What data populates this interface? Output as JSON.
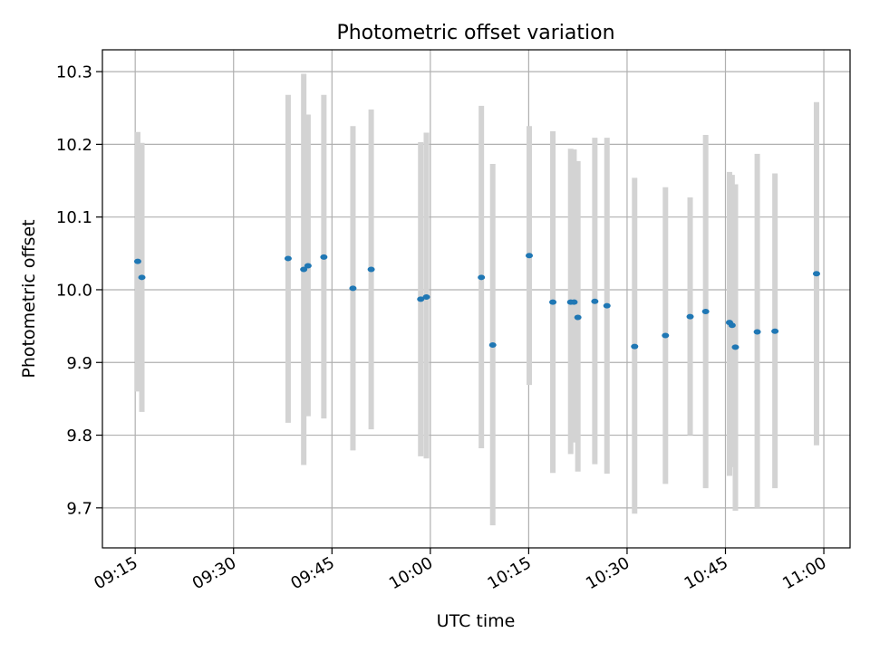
{
  "chart_data": {
    "type": "scatter",
    "title": "Photometric offset variation",
    "xlabel": "UTC time",
    "ylabel": "Photometric offset",
    "x_axis": {
      "kind": "time",
      "range": [
        "09:10",
        "11:04"
      ],
      "ticks": [
        "09:15",
        "09:30",
        "09:45",
        "10:00",
        "10:15",
        "10:30",
        "10:45",
        "11:00"
      ]
    },
    "y_axis": {
      "range": [
        9.645,
        10.33
      ],
      "ticks": [
        9.7,
        9.8,
        9.9,
        10.0,
        10.1,
        10.2,
        10.3
      ],
      "tick_labels": [
        "9.7",
        "9.8",
        "9.9",
        "10.0",
        "10.1",
        "10.2",
        "10.3"
      ]
    },
    "grid": true,
    "legend": "none",
    "colors": {
      "point": "#1f77b4",
      "errorbar": "#d3d3d3",
      "grid": "#b0b0b0"
    },
    "points": [
      {
        "x": "09:15:23",
        "y": 10.039,
        "lo": 9.86,
        "hi": 10.217
      },
      {
        "x": "09:16:01",
        "y": 10.017,
        "lo": 9.832,
        "hi": 10.202
      },
      {
        "x": "09:38:19",
        "y": 10.043,
        "lo": 9.817,
        "hi": 10.268
      },
      {
        "x": "09:40:42",
        "y": 10.028,
        "lo": 9.759,
        "hi": 10.297
      },
      {
        "x": "09:41:21",
        "y": 10.033,
        "lo": 9.826,
        "hi": 10.241
      },
      {
        "x": "09:43:46",
        "y": 10.045,
        "lo": 9.823,
        "hi": 10.268
      },
      {
        "x": "09:48:12",
        "y": 10.002,
        "lo": 9.779,
        "hi": 10.225
      },
      {
        "x": "09:50:59",
        "y": 10.028,
        "lo": 9.808,
        "hi": 10.248
      },
      {
        "x": "09:58:32",
        "y": 9.987,
        "lo": 9.771,
        "hi": 10.203
      },
      {
        "x": "09:59:24",
        "y": 9.99,
        "lo": 9.768,
        "hi": 10.216
      },
      {
        "x": "10:07:47",
        "y": 10.017,
        "lo": 9.782,
        "hi": 10.253
      },
      {
        "x": "10:09:31",
        "y": 9.924,
        "lo": 9.676,
        "hi": 10.173
      },
      {
        "x": "10:15:05",
        "y": 10.047,
        "lo": 9.869,
        "hi": 10.225
      },
      {
        "x": "10:18:41",
        "y": 9.983,
        "lo": 9.748,
        "hi": 10.218
      },
      {
        "x": "10:21:24",
        "y": 9.983,
        "lo": 9.774,
        "hi": 10.194
      },
      {
        "x": "10:21:55",
        "y": 9.983,
        "lo": 9.79,
        "hi": 10.193
      },
      {
        "x": "10:22:30",
        "y": 9.962,
        "lo": 9.75,
        "hi": 10.177
      },
      {
        "x": "10:25:05",
        "y": 9.984,
        "lo": 9.76,
        "hi": 10.209
      },
      {
        "x": "10:26:56",
        "y": 9.978,
        "lo": 9.747,
        "hi": 10.209
      },
      {
        "x": "10:31:09",
        "y": 9.922,
        "lo": 9.692,
        "hi": 10.154
      },
      {
        "x": "10:35:51",
        "y": 9.937,
        "lo": 9.733,
        "hi": 10.141
      },
      {
        "x": "10:39:37",
        "y": 9.963,
        "lo": 9.8,
        "hi": 10.127
      },
      {
        "x": "10:41:59",
        "y": 9.97,
        "lo": 9.727,
        "hi": 10.213
      },
      {
        "x": "10:45:37",
        "y": 9.955,
        "lo": 9.744,
        "hi": 10.162
      },
      {
        "x": "10:46:01",
        "y": 9.951,
        "lo": 9.756,
        "hi": 10.158
      },
      {
        "x": "10:46:31",
        "y": 9.921,
        "lo": 9.696,
        "hi": 10.145
      },
      {
        "x": "10:49:51",
        "y": 9.942,
        "lo": 9.7,
        "hi": 10.187
      },
      {
        "x": "10:52:33",
        "y": 9.943,
        "lo": 9.727,
        "hi": 10.16
      },
      {
        "x": "10:58:53",
        "y": 10.022,
        "lo": 9.786,
        "hi": 10.258
      }
    ]
  }
}
